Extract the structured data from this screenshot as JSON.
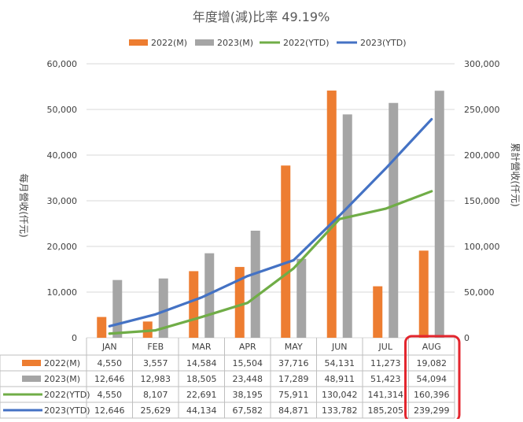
{
  "chart_data": {
    "type": "bar",
    "title": "年度增(減)比率 49.19%",
    "categories": [
      "JAN",
      "FEB",
      "MAR",
      "APR",
      "MAY",
      "JUN",
      "JUL",
      "AUG"
    ],
    "ylabel": "每月營收(仟元)",
    "y2label": "累計營收(仟元)",
    "ylim": [
      0,
      60000
    ],
    "y2lim": [
      0,
      300000
    ],
    "yticks": [
      "0",
      "10,000",
      "20,000",
      "30,000",
      "40,000",
      "50,000",
      "60,000"
    ],
    "y2ticks": [
      "0",
      "50,000",
      "100,000",
      "150,000",
      "200,000",
      "250,000",
      "300,000"
    ],
    "grid": true,
    "legend_position": "top",
    "highlight_category": "AUG",
    "highlight_color": "#e3262e",
    "series": [
      {
        "name": "2022(M)",
        "kind": "bar",
        "axis": "left",
        "color": "#ed7d31",
        "values": [
          4550,
          3557,
          14584,
          15504,
          37716,
          54131,
          11273,
          19082
        ],
        "labels": [
          "4,550",
          "3,557",
          "14,584",
          "15,504",
          "37,716",
          "54,131",
          "11,273",
          "19,082"
        ]
      },
      {
        "name": "2023(M)",
        "kind": "bar",
        "axis": "left",
        "color": "#a5a5a5",
        "values": [
          12646,
          12983,
          18505,
          23448,
          17289,
          48911,
          51423,
          54094
        ],
        "labels": [
          "12,646",
          "12,983",
          "18,505",
          "23,448",
          "17,289",
          "48,911",
          "51,423",
          "54,094"
        ]
      },
      {
        "name": "2022(YTD)",
        "kind": "line",
        "axis": "right",
        "color": "#70ad47",
        "values": [
          4550,
          8107,
          22691,
          38195,
          75911,
          130042,
          141314,
          160396
        ],
        "labels": [
          "4,550",
          "8,107",
          "22,691",
          "38,195",
          "75,911",
          "130,042",
          "141,314",
          "160,396"
        ]
      },
      {
        "name": "2023(YTD)",
        "kind": "line",
        "axis": "right",
        "color": "#4472c4",
        "values": [
          12646,
          25629,
          44134,
          67582,
          84871,
          133782,
          185205,
          239299
        ],
        "labels": [
          "12,646",
          "25,629",
          "44,134",
          "67,582",
          "84,871",
          "133,782",
          "185,205",
          "239,299"
        ]
      }
    ]
  }
}
